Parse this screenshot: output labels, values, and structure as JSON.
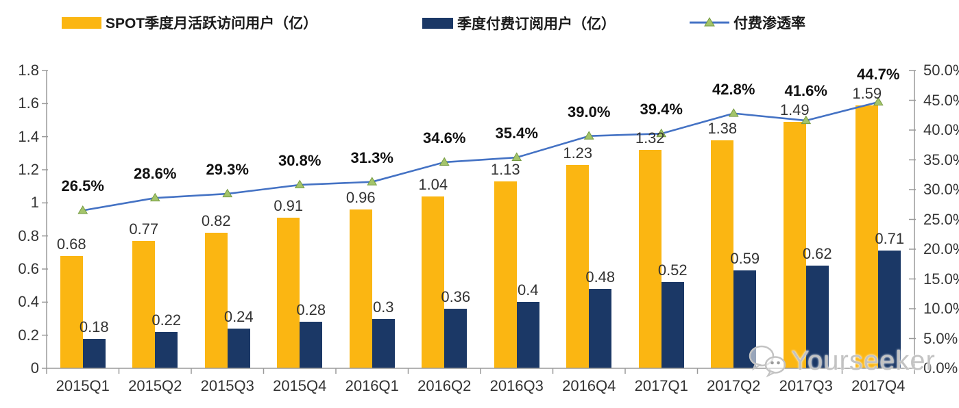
{
  "legend": [
    {
      "label": "SPOT季度月活跃访问用户（亿）",
      "color": "#FBB612",
      "type": "bar"
    },
    {
      "label": "季度付费订阅用户（亿）",
      "color": "#1B3866",
      "type": "bar"
    },
    {
      "label": "付费渗透率",
      "color": "#4472C4",
      "marker_color": "#A3C46A",
      "type": "line"
    }
  ],
  "watermark": {
    "text": "Yourseeker",
    "icon": "wechat-icon"
  },
  "chart_data": {
    "type": "bar+line combo",
    "categories": [
      "2015Q1",
      "2015Q2",
      "2015Q3",
      "2015Q4",
      "2016Q1",
      "2016Q2",
      "2016Q3",
      "2016Q4",
      "2017Q1",
      "2017Q2",
      "2017Q3",
      "2017Q4"
    ],
    "series": [
      {
        "name": "SPOT季度月活跃访问用户（亿）",
        "type": "bar",
        "axis": "left",
        "color": "#FBB612",
        "values": [
          0.68,
          0.77,
          0.82,
          0.91,
          0.96,
          1.04,
          1.13,
          1.23,
          1.32,
          1.38,
          1.49,
          1.59
        ],
        "labels": [
          "0.68",
          "0.77",
          "0.82",
          "0.91",
          "0.96",
          "1.04",
          "1.13",
          "1.23",
          "1.32",
          "1.38",
          "1.49",
          "1.59"
        ]
      },
      {
        "name": "季度付费订阅用户（亿）",
        "type": "bar",
        "axis": "left",
        "color": "#1B3866",
        "values": [
          0.18,
          0.22,
          0.24,
          0.28,
          0.3,
          0.36,
          0.4,
          0.48,
          0.52,
          0.59,
          0.62,
          0.71
        ],
        "labels": [
          "0.18",
          "0.22",
          "0.24",
          "0.28",
          "0.3",
          "0.36",
          "0.4",
          "0.48",
          "0.52",
          "0.59",
          "0.62",
          "0.71"
        ]
      },
      {
        "name": "付费渗透率",
        "type": "line",
        "axis": "right",
        "color": "#4472C4",
        "marker": "triangle-up",
        "marker_color": "#A3C46A",
        "marker_edge": "#769B43",
        "values": [
          26.5,
          28.6,
          29.3,
          30.8,
          31.3,
          34.6,
          35.4,
          39.0,
          39.4,
          42.8,
          41.6,
          44.7
        ],
        "labels": [
          "26.5%",
          "28.6%",
          "29.3%",
          "30.8%",
          "31.3%",
          "34.6%",
          "35.4%",
          "39.0%",
          "39.4%",
          "42.8%",
          "41.6%",
          "44.7%"
        ]
      }
    ],
    "left_axis": {
      "min": 0,
      "max": 1.8,
      "ticks": [
        "0",
        "0.2",
        "0.4",
        "0.6",
        "0.8",
        "1",
        "1.2",
        "1.4",
        "1.6",
        "1.8"
      ]
    },
    "right_axis": {
      "min": 0,
      "max": 50,
      "ticks": [
        "0.0%",
        "5.0%",
        "10.0%",
        "15.0%",
        "20.0%",
        "25.0%",
        "30.0%",
        "35.0%",
        "40.0%",
        "45.0%",
        "50.0%"
      ]
    },
    "grid": false,
    "legend_position": "top",
    "axis_color": "#9a9a9a"
  }
}
